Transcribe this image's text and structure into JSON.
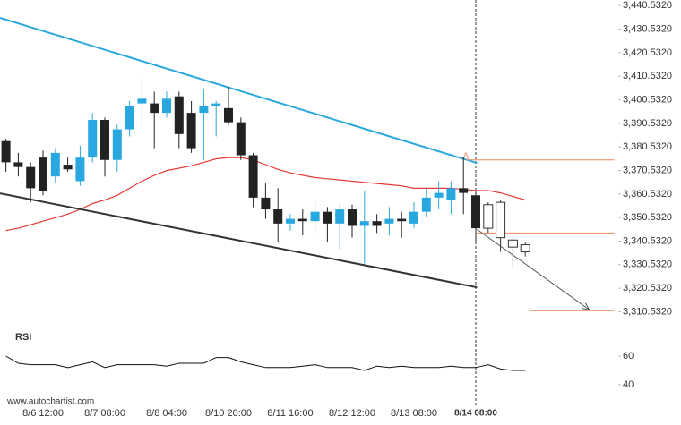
{
  "chart_data": {
    "type": "candlestick",
    "categories": [
      null,
      null,
      null,
      "8/6 12:00",
      null,
      null,
      null,
      null,
      "8/7 08:00",
      null,
      null,
      null,
      null,
      "8/8 04:00",
      null,
      null,
      null,
      null,
      "8/10 20:00",
      null,
      null,
      null,
      null,
      "8/11 16:00",
      null,
      null,
      null,
      null,
      "8/12 12:00",
      null,
      null,
      null,
      null,
      "8/13 08:00",
      null,
      null,
      null,
      null,
      "8/14 08:00",
      null,
      null,
      null,
      null
    ],
    "open": [
      3383,
      3374,
      3372,
      3376,
      3368,
      3373,
      3366,
      3376,
      3392,
      3375,
      3388,
      3399,
      3399,
      3395,
      3402,
      3395,
      3395,
      3398,
      3397,
      3391,
      3377,
      3359,
      3354,
      3348,
      3350,
      3349,
      3353,
      3348,
      3354,
      3347,
      3349,
      3348,
      3350,
      3348,
      3353,
      3359,
      3358,
      3363,
      3360,
      3346,
      3357,
      3341,
      3339
    ],
    "high": [
      3384,
      3378,
      3374,
      3379,
      3380,
      3376,
      3381,
      3395,
      3393,
      3390,
      3400,
      3410,
      3404,
      3404,
      3404,
      3400,
      3405,
      3400,
      3406,
      3393,
      3378,
      3365,
      3363,
      3352,
      3354,
      3358,
      3355,
      3356,
      3356,
      3362,
      3352,
      3355,
      3353,
      3357,
      3363,
      3366,
      3366,
      3376,
      3362,
      3357,
      3358,
      3342,
      3340
    ],
    "low": [
      3370,
      3368,
      3357,
      3360,
      3365,
      3370,
      3364,
      3374,
      3368,
      3370,
      3385,
      3390,
      3380,
      3393,
      3380,
      3378,
      3375,
      3385,
      3390,
      3375,
      3355,
      3350,
      3340,
      3345,
      3343,
      3344,
      3340,
      3337,
      3342,
      3331,
      3344,
      3343,
      3342,
      3346,
      3351,
      3354,
      3352,
      3352,
      3340,
      3344,
      3336,
      3329,
      3334
    ],
    "close": [
      3374,
      3372,
      3363,
      3362,
      3378,
      3371,
      3376,
      3392,
      3375,
      3388,
      3398,
      3401,
      3395,
      3401,
      3386,
      3380,
      3398,
      3399,
      3391,
      3377,
      3359,
      3354,
      3348,
      3350,
      3349,
      3353,
      3348,
      3354,
      3347,
      3349,
      3347,
      3350,
      3349,
      3353,
      3359,
      3361,
      3363,
      3361,
      3346,
      3356,
      3342,
      3338,
      3336
    ],
    "up_color": "#29a8e0",
    "down_color": "#222222",
    "hollow_from_index": 39,
    "current_index": 38,
    "ylim": [
      3306.532,
      3442.532
    ],
    "yticks": [
      {
        "value": 3440.532,
        "label": "3,440.5320"
      },
      {
        "value": 3430.532,
        "label": "3,430.5320"
      },
      {
        "value": 3420.532,
        "label": "3,420.5320"
      },
      {
        "value": 3410.532,
        "label": "3,410.5320"
      },
      {
        "value": 3400.532,
        "label": "3,400.5320"
      },
      {
        "value": 3390.532,
        "label": "3,390.5320"
      },
      {
        "value": 3380.532,
        "label": "3,380.5320"
      },
      {
        "value": 3370.532,
        "label": "3,370.5320"
      },
      {
        "value": 3360.532,
        "label": "3,360.5320"
      },
      {
        "value": 3350.532,
        "label": "3,350.5320"
      },
      {
        "value": 3340.532,
        "label": "3,340.5320"
      },
      {
        "value": 3330.532,
        "label": "3,330.5320"
      },
      {
        "value": 3320.532,
        "label": "3,320.5320"
      },
      {
        "value": 3310.532,
        "label": "3,310.5320"
      }
    ],
    "moving_average": {
      "color": "#e53935",
      "values": [
        3345,
        3346,
        3347.5,
        3349,
        3350.5,
        3352,
        3354,
        3356.5,
        3358,
        3360,
        3363,
        3366,
        3368.5,
        3370.5,
        3371.5,
        3372.5,
        3374,
        3375.5,
        3376,
        3376,
        3375,
        3373,
        3371,
        3369.5,
        3368.5,
        3367.5,
        3367,
        3366.5,
        3366,
        3365.5,
        3365,
        3364.5,
        3364,
        3363,
        3363,
        3363,
        3363,
        3362.5,
        3362,
        3362,
        3361,
        3359.5,
        3358
      ]
    },
    "trend_lines": [
      {
        "color": "#29a8e0",
        "x": [
          -0.48,
          38.1
        ],
        "y": [
          3435.3,
          3373.7
        ]
      },
      {
        "color": "#333333",
        "x": [
          -0.48,
          38.1
        ],
        "y": [
          3360.8,
          3320.9
        ]
      }
    ],
    "levels": [
      {
        "color": "#f08a5d",
        "value": 3375,
        "x": [
          37.2,
          49.2
        ]
      },
      {
        "color": "#f08a5d",
        "value": 3344,
        "x": [
          38.1,
          49.2
        ]
      },
      {
        "color": "#f08a5d",
        "value": 3311,
        "x": [
          42.3,
          49.2
        ]
      }
    ],
    "forecast_arrow": {
      "color": "#555555",
      "x": [
        38.1,
        47.2
      ],
      "y": [
        3345.5,
        3311.3
      ]
    },
    "pattern_label": {
      "text": "A",
      "x": 37.2,
      "y": 3376.5,
      "color": "#f08a5d"
    },
    "rsi": {
      "title": "RSI",
      "color": "#111111",
      "ylim": [
        30,
        80
      ],
      "yticks": [
        60,
        40
      ],
      "values": [
        60,
        55,
        54,
        54,
        54,
        52,
        54,
        56,
        52,
        54,
        54,
        54,
        54,
        53,
        55,
        55,
        55,
        59,
        59,
        56,
        54,
        52,
        52,
        52,
        53,
        54,
        52,
        52,
        52,
        50,
        53,
        52,
        53,
        52,
        52,
        52,
        53,
        52,
        52,
        54,
        51,
        50,
        50
      ]
    },
    "footer": "www.autochartist.com"
  }
}
